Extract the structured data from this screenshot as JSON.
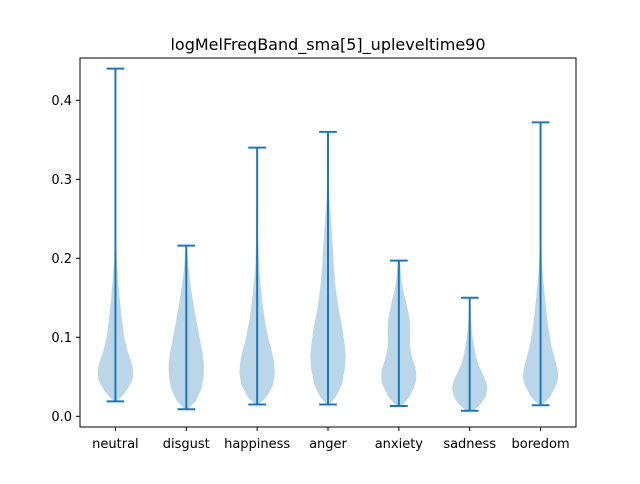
{
  "chart_data": {
    "type": "violin",
    "title": "logMelFreqBand_sma[5]_upleveltime90",
    "xlabel": "",
    "ylabel": "",
    "categories": [
      "neutral",
      "disgust",
      "happiness",
      "anger",
      "anxiety",
      "sadness",
      "boredom"
    ],
    "ylim": [
      -0.0135,
      0.4535
    ],
    "yticks": [
      0.0,
      0.1,
      0.2,
      0.3,
      0.4
    ],
    "ytick_labels": [
      "0.0",
      "0.1",
      "0.2",
      "0.3",
      "0.4"
    ],
    "grid": false,
    "legend": "none",
    "colors": {
      "violin_fill": "#1f77b4",
      "violin_alpha": 0.3,
      "lines": "#1f77b4"
    },
    "series": [
      {
        "category": "neutral",
        "min": 0.019,
        "max": 0.44,
        "density": [
          [
            0.019,
            0.05
          ],
          [
            0.025,
            0.35
          ],
          [
            0.035,
            0.7
          ],
          [
            0.045,
            0.95
          ],
          [
            0.055,
            1.0
          ],
          [
            0.065,
            0.95
          ],
          [
            0.075,
            0.8
          ],
          [
            0.085,
            0.65
          ],
          [
            0.1,
            0.5
          ],
          [
            0.12,
            0.38
          ],
          [
            0.14,
            0.28
          ],
          [
            0.16,
            0.2
          ],
          [
            0.18,
            0.13
          ],
          [
            0.2,
            0.07
          ],
          [
            0.22,
            0.04
          ],
          [
            0.26,
            0.025
          ],
          [
            0.3,
            0.02
          ],
          [
            0.35,
            0.015
          ],
          [
            0.4,
            0.01
          ],
          [
            0.44,
            0.005
          ]
        ]
      },
      {
        "category": "disgust",
        "min": 0.009,
        "max": 0.216,
        "density": [
          [
            0.009,
            0.1
          ],
          [
            0.02,
            0.55
          ],
          [
            0.035,
            0.85
          ],
          [
            0.05,
            0.98
          ],
          [
            0.065,
            1.0
          ],
          [
            0.08,
            0.92
          ],
          [
            0.1,
            0.75
          ],
          [
            0.12,
            0.58
          ],
          [
            0.14,
            0.42
          ],
          [
            0.16,
            0.28
          ],
          [
            0.18,
            0.16
          ],
          [
            0.2,
            0.08
          ],
          [
            0.216,
            0.03
          ]
        ]
      },
      {
        "category": "happiness",
        "min": 0.015,
        "max": 0.34,
        "density": [
          [
            0.015,
            0.1
          ],
          [
            0.025,
            0.55
          ],
          [
            0.04,
            0.9
          ],
          [
            0.055,
            1.0
          ],
          [
            0.07,
            0.95
          ],
          [
            0.085,
            0.8
          ],
          [
            0.1,
            0.62
          ],
          [
            0.12,
            0.45
          ],
          [
            0.14,
            0.32
          ],
          [
            0.16,
            0.22
          ],
          [
            0.18,
            0.14
          ],
          [
            0.2,
            0.09
          ],
          [
            0.22,
            0.06
          ],
          [
            0.25,
            0.04
          ],
          [
            0.28,
            0.025
          ],
          [
            0.31,
            0.015
          ],
          [
            0.34,
            0.008
          ]
        ]
      },
      {
        "category": "anger",
        "min": 0.015,
        "max": 0.36,
        "density": [
          [
            0.015,
            0.1
          ],
          [
            0.025,
            0.45
          ],
          [
            0.04,
            0.78
          ],
          [
            0.06,
            0.95
          ],
          [
            0.075,
            1.0
          ],
          [
            0.09,
            0.95
          ],
          [
            0.11,
            0.82
          ],
          [
            0.13,
            0.65
          ],
          [
            0.15,
            0.5
          ],
          [
            0.17,
            0.4
          ],
          [
            0.19,
            0.33
          ],
          [
            0.21,
            0.28
          ],
          [
            0.23,
            0.22
          ],
          [
            0.25,
            0.16
          ],
          [
            0.27,
            0.1
          ],
          [
            0.29,
            0.06
          ],
          [
            0.31,
            0.035
          ],
          [
            0.34,
            0.02
          ],
          [
            0.36,
            0.01
          ]
        ]
      },
      {
        "category": "anxiety",
        "min": 0.013,
        "max": 0.197,
        "density": [
          [
            0.013,
            0.15
          ],
          [
            0.025,
            0.6
          ],
          [
            0.04,
            0.92
          ],
          [
            0.05,
            1.0
          ],
          [
            0.06,
            0.95
          ],
          [
            0.07,
            0.8
          ],
          [
            0.08,
            0.68
          ],
          [
            0.09,
            0.62
          ],
          [
            0.1,
            0.62
          ],
          [
            0.11,
            0.64
          ],
          [
            0.12,
            0.62
          ],
          [
            0.13,
            0.55
          ],
          [
            0.14,
            0.45
          ],
          [
            0.15,
            0.34
          ],
          [
            0.16,
            0.24
          ],
          [
            0.17,
            0.17
          ],
          [
            0.18,
            0.12
          ],
          [
            0.197,
            0.06
          ]
        ]
      },
      {
        "category": "sadness",
        "min": 0.007,
        "max": 0.15,
        "density": [
          [
            0.007,
            0.2
          ],
          [
            0.015,
            0.6
          ],
          [
            0.025,
            0.9
          ],
          [
            0.035,
            1.0
          ],
          [
            0.045,
            0.9
          ],
          [
            0.055,
            0.7
          ],
          [
            0.065,
            0.5
          ],
          [
            0.075,
            0.36
          ],
          [
            0.085,
            0.27
          ],
          [
            0.095,
            0.2
          ],
          [
            0.105,
            0.14
          ],
          [
            0.115,
            0.09
          ],
          [
            0.125,
            0.06
          ],
          [
            0.14,
            0.03
          ],
          [
            0.15,
            0.015
          ]
        ]
      },
      {
        "category": "boredom",
        "min": 0.014,
        "max": 0.372,
        "density": [
          [
            0.014,
            0.1
          ],
          [
            0.025,
            0.55
          ],
          [
            0.04,
            0.9
          ],
          [
            0.05,
            1.0
          ],
          [
            0.06,
            0.95
          ],
          [
            0.075,
            0.78
          ],
          [
            0.09,
            0.6
          ],
          [
            0.11,
            0.45
          ],
          [
            0.13,
            0.34
          ],
          [
            0.15,
            0.25
          ],
          [
            0.17,
            0.16
          ],
          [
            0.19,
            0.09
          ],
          [
            0.21,
            0.05
          ],
          [
            0.24,
            0.03
          ],
          [
            0.28,
            0.02
          ],
          [
            0.32,
            0.015
          ],
          [
            0.372,
            0.008
          ]
        ]
      }
    ]
  }
}
